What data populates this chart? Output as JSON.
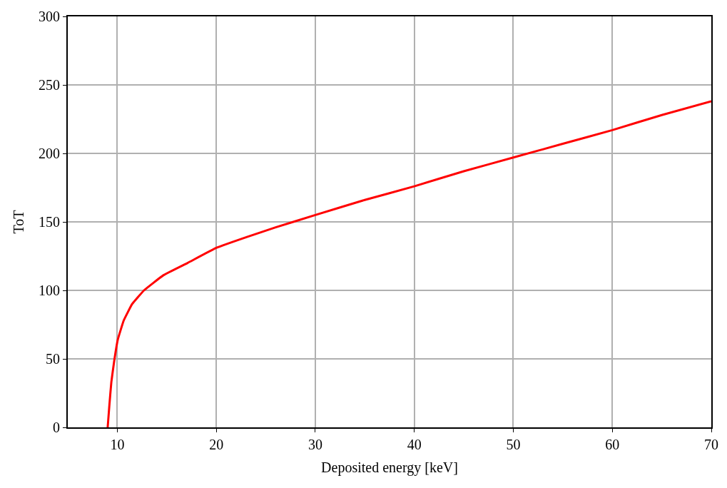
{
  "chart_data": {
    "type": "line",
    "xlabel": "Deposited energy [keV]",
    "ylabel": "ToT",
    "x": [
      9.03,
      9.2,
      9.4,
      9.7,
      10.05,
      10.65,
      11.5,
      12.7,
      14.65,
      17.1,
      20.0,
      23.1,
      26,
      30,
      35,
      40,
      45,
      50,
      55,
      60,
      65,
      70
    ],
    "series": [
      {
        "color": "#ff0000",
        "values": [
          0,
          16,
          33,
          49,
          64,
          78,
          90,
          100,
          111,
          120,
          131,
          139,
          146,
          155,
          166,
          176,
          187,
          197,
          207,
          217,
          228,
          238
        ]
      }
    ],
    "xlim": [
      5,
      70
    ],
    "xticks": [
      10,
      20,
      30,
      40,
      50,
      60,
      70
    ],
    "ylim": [
      0,
      300
    ],
    "yticks": [
      0,
      50,
      100,
      150,
      200,
      250,
      300
    ],
    "grid": true,
    "legend": false,
    "marker": "none",
    "line_style": "solid"
  }
}
